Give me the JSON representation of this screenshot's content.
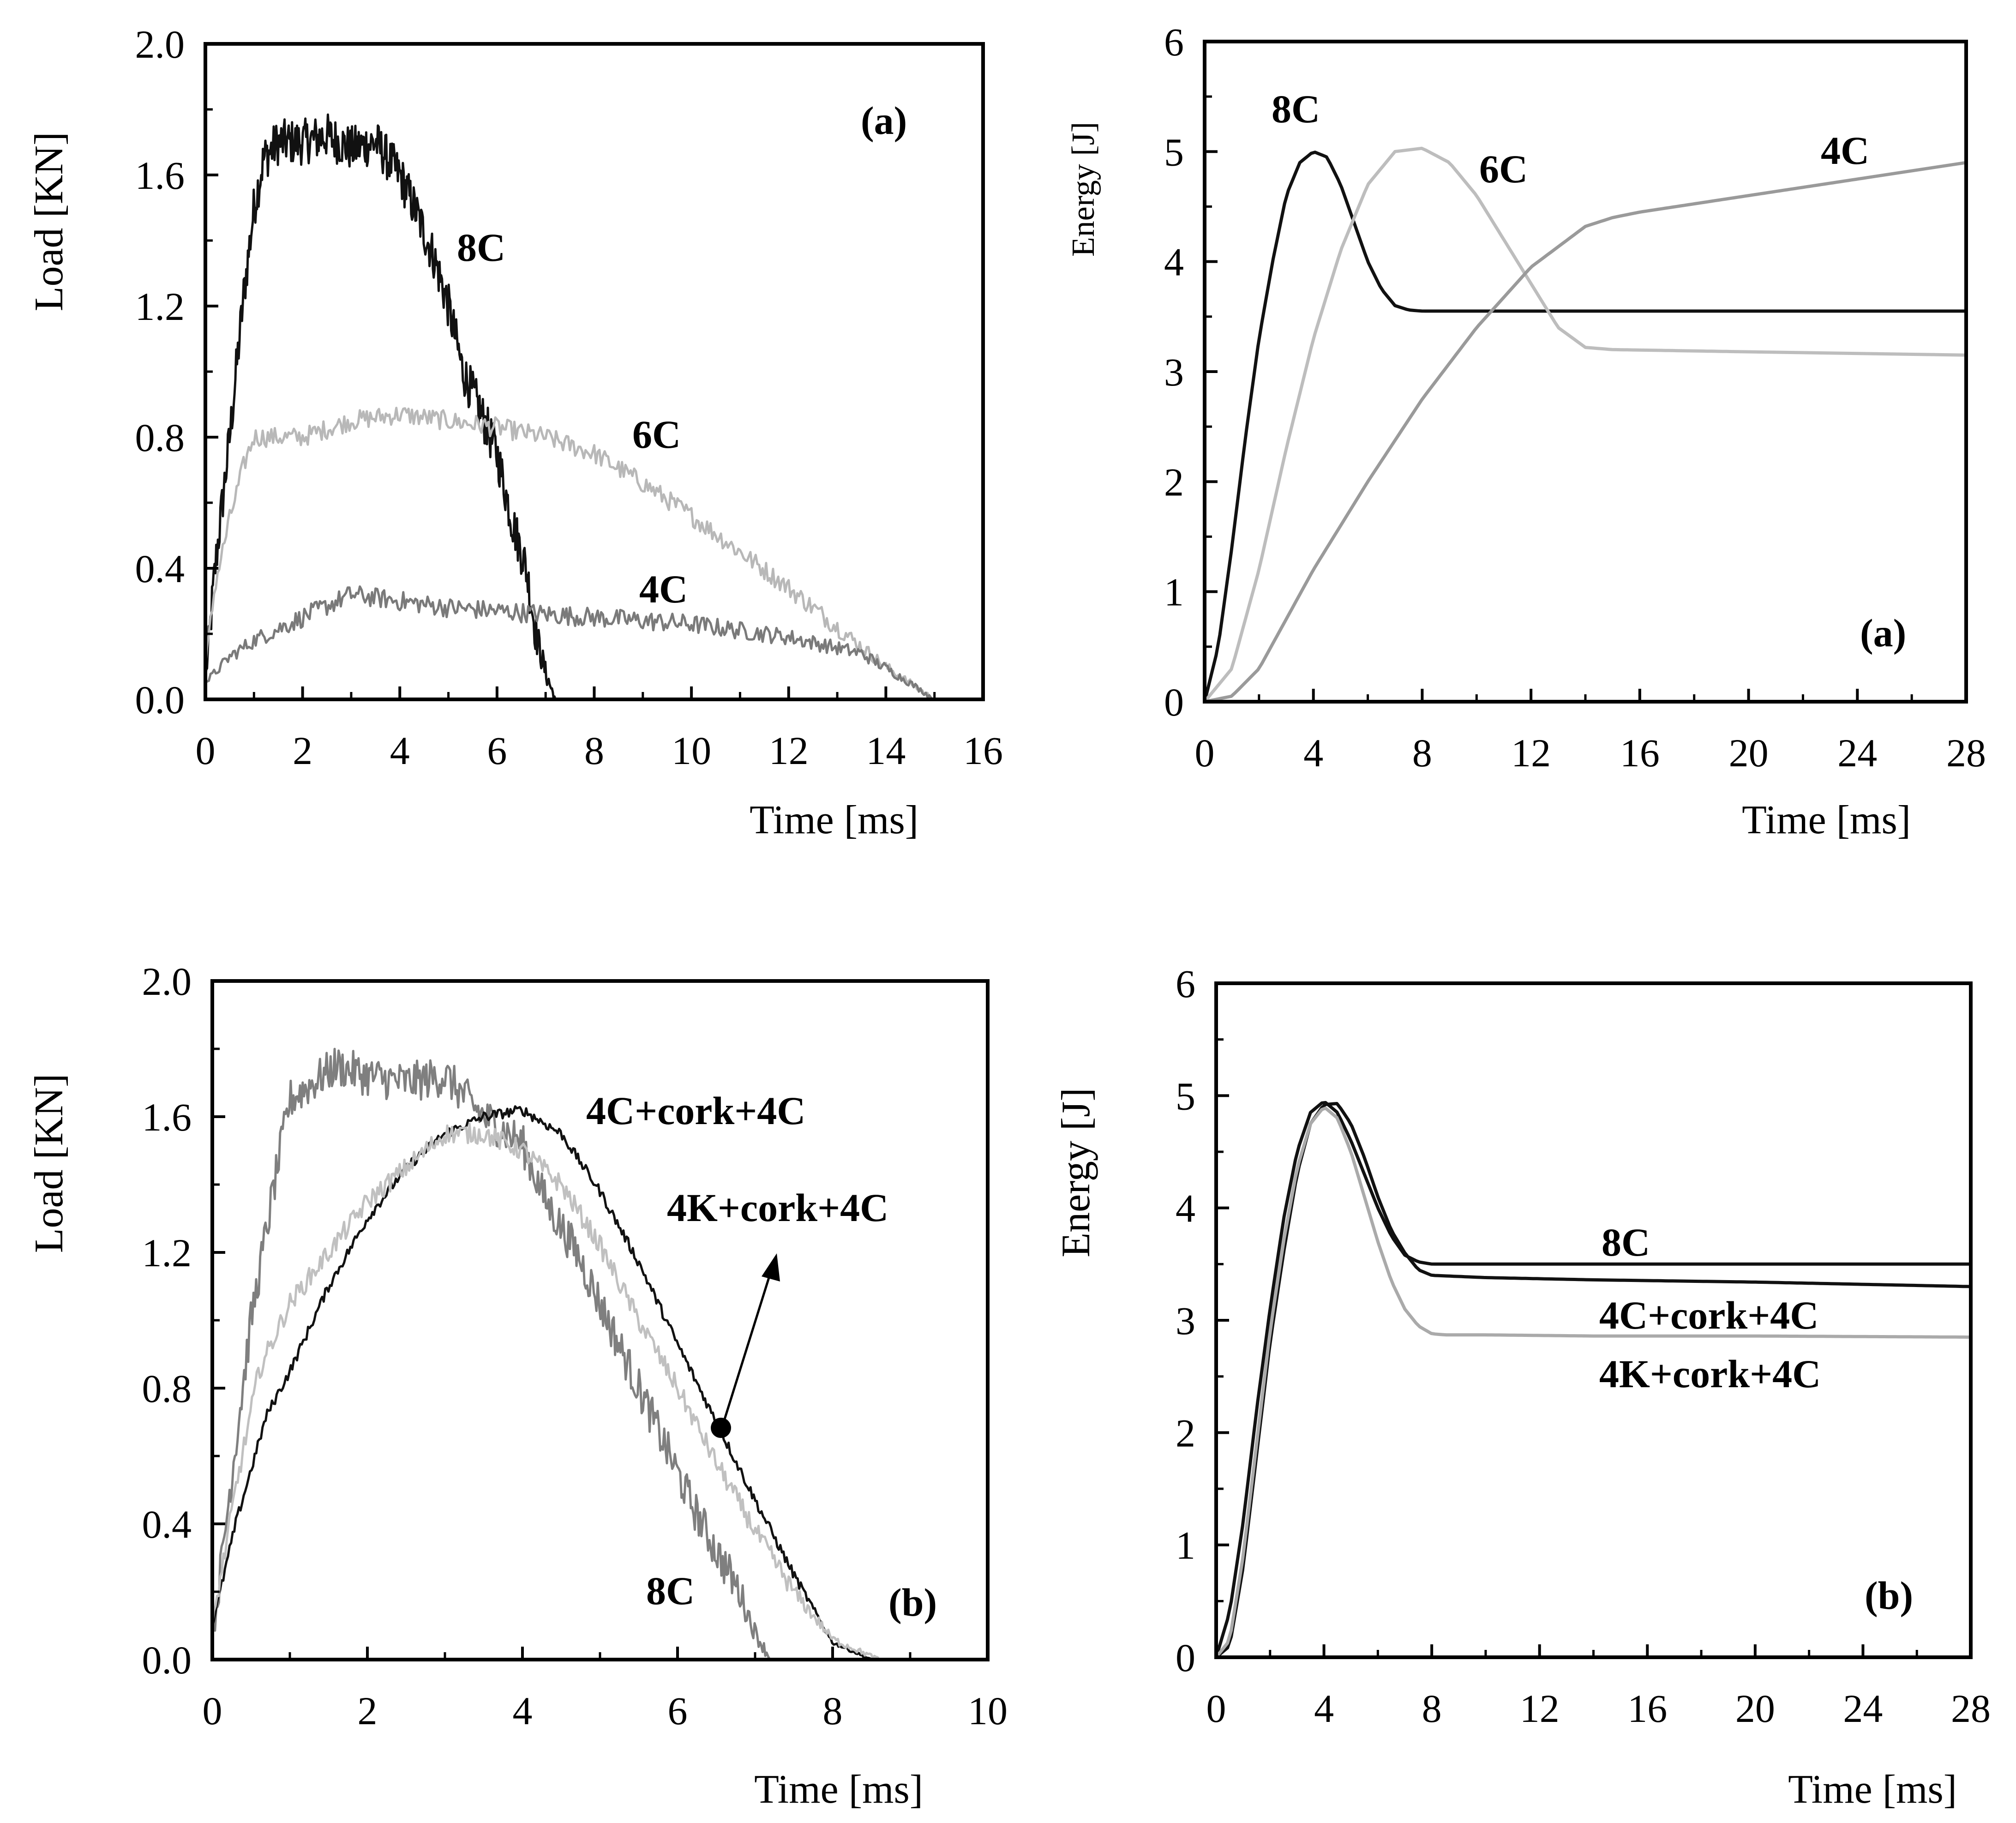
{
  "chart_data": [
    {
      "type": "line",
      "title": "",
      "panel_label": "(a)",
      "xlabel": "Time [ms]",
      "ylabel": "Load [KN]",
      "xlim": [
        0,
        16
      ],
      "ylim": [
        0,
        2.0
      ],
      "xticks": [
        "0",
        "2",
        "4",
        "6",
        "8",
        "10",
        "12",
        "14",
        "16"
      ],
      "yticks": [
        "0.0",
        "0.4",
        "0.8",
        "1.2",
        "1.6",
        "2.0"
      ],
      "grid": false,
      "series": [
        {
          "name": "8C",
          "color": "#111111",
          "noise": 0.07,
          "x": [
            0,
            0.2,
            0.5,
            0.8,
            1.0,
            1.2,
            1.5,
            2.0,
            2.5,
            3.0,
            3.5,
            4.0,
            4.3,
            4.7,
            5.0,
            5.3,
            5.6,
            6.0,
            6.3,
            6.6,
            6.8,
            7.0,
            7.2
          ],
          "y": [
            0.05,
            0.4,
            0.8,
            1.25,
            1.5,
            1.65,
            1.7,
            1.7,
            1.72,
            1.68,
            1.7,
            1.6,
            1.5,
            1.35,
            1.2,
            1.0,
            0.9,
            0.75,
            0.55,
            0.4,
            0.2,
            0.08,
            0.0
          ]
        },
        {
          "name": "6C",
          "color": "#b8b8b8",
          "noise": 0.03,
          "x": [
            0,
            0.2,
            0.5,
            0.8,
            1.0,
            2.0,
            3.0,
            4.0,
            5.0,
            6.0,
            7.0,
            8.0,
            9.0,
            10.0,
            11.0,
            12.0,
            13.0,
            14.0,
            14.5,
            15.0
          ],
          "y": [
            0.1,
            0.35,
            0.55,
            0.72,
            0.8,
            0.8,
            0.85,
            0.87,
            0.85,
            0.83,
            0.8,
            0.75,
            0.66,
            0.56,
            0.45,
            0.34,
            0.22,
            0.1,
            0.05,
            0.0
          ]
        },
        {
          "name": "4C",
          "color": "#7a7a7a",
          "noise": 0.03,
          "x": [
            0,
            0.5,
            1.0,
            2.0,
            3.0,
            4.0,
            5.0,
            6.0,
            8.0,
            10.0,
            12.0,
            13.5,
            14.5,
            15.0
          ],
          "y": [
            0.05,
            0.13,
            0.18,
            0.25,
            0.32,
            0.3,
            0.28,
            0.27,
            0.25,
            0.23,
            0.19,
            0.14,
            0.05,
            0.0
          ]
        }
      ],
      "annotations": [
        "8C",
        "6C",
        "4C"
      ]
    },
    {
      "type": "line",
      "title": "",
      "panel_label": "(a)",
      "xlabel": "Time [ms]",
      "ylabel": "Energy [J]",
      "xlim": [
        0,
        28
      ],
      "ylim": [
        0,
        6
      ],
      "xticks": [
        "0",
        "4",
        "8",
        "12",
        "16",
        "20",
        "24",
        "28"
      ],
      "yticks": [
        "0",
        "1",
        "2",
        "3",
        "4",
        "5",
        "6"
      ],
      "grid": false,
      "series": [
        {
          "name": "8C",
          "color": "#111111",
          "x": [
            0,
            0.5,
            1,
            1.5,
            2,
            2.5,
            3,
            3.5,
            4,
            4.5,
            5,
            5.5,
            6,
            6.5,
            7,
            7.5,
            8,
            10,
            14,
            20,
            28
          ],
          "y": [
            0,
            0.5,
            1.4,
            2.4,
            3.3,
            4.0,
            4.6,
            4.9,
            5.0,
            4.95,
            4.7,
            4.35,
            4.0,
            3.75,
            3.6,
            3.56,
            3.55,
            3.55,
            3.55,
            3.55,
            3.55
          ]
        },
        {
          "name": "6C",
          "color": "#bdbdbd",
          "x": [
            0,
            1,
            2,
            3,
            4,
            5,
            6,
            7,
            8,
            9,
            10,
            11,
            12,
            13,
            14,
            15,
            20,
            28
          ],
          "y": [
            0,
            0.3,
            1.2,
            2.3,
            3.3,
            4.1,
            4.7,
            5.0,
            5.03,
            4.9,
            4.6,
            4.2,
            3.8,
            3.4,
            3.22,
            3.2,
            3.18,
            3.15
          ]
        },
        {
          "name": "4C",
          "color": "#9a9a9a",
          "x": [
            0,
            1,
            2,
            3,
            4,
            6,
            8,
            10,
            12,
            14,
            15,
            16,
            20,
            24,
            28
          ],
          "y": [
            0,
            0.05,
            0.3,
            0.75,
            1.2,
            2.0,
            2.75,
            3.4,
            3.95,
            4.32,
            4.4,
            4.45,
            4.6,
            4.75,
            4.9
          ]
        }
      ],
      "annotations": [
        "8C",
        "6C",
        "4C"
      ]
    },
    {
      "type": "line",
      "title": "",
      "panel_label": "(b)",
      "xlabel": "Time [ms]",
      "ylabel": "Load [KN]",
      "xlim": [
        0,
        10
      ],
      "ylim": [
        0,
        2.0
      ],
      "xticks": [
        "0",
        "2",
        "4",
        "6",
        "8",
        "10"
      ],
      "yticks": [
        "0.0",
        "0.4",
        "0.8",
        "1.2",
        "1.6",
        "2.0"
      ],
      "grid": false,
      "series": [
        {
          "name": "8C",
          "color": "#7f7f7f",
          "noise": 0.06,
          "x": [
            0,
            0.2,
            0.5,
            0.8,
            1.0,
            1.3,
            1.6,
            2.0,
            2.5,
            3.0,
            3.5,
            4.0,
            4.3,
            4.7,
            5.0,
            5.3,
            5.6,
            5.9,
            6.2,
            6.5,
            6.8,
            7.0,
            7.2
          ],
          "y": [
            0.05,
            0.45,
            1.0,
            1.4,
            1.65,
            1.7,
            1.75,
            1.72,
            1.7,
            1.72,
            1.6,
            1.52,
            1.35,
            1.2,
            1.05,
            0.9,
            0.75,
            0.6,
            0.45,
            0.32,
            0.2,
            0.08,
            0.0
          ]
        },
        {
          "name": "4C+cork+4C",
          "color": "#111111",
          "noise": 0.015,
          "x": [
            0,
            0.3,
            0.7,
            1.0,
            1.5,
            2.0,
            2.5,
            3.0,
            3.5,
            4.0,
            4.5,
            5.0,
            5.5,
            6.0,
            6.5,
            7.0,
            7.5,
            8.0,
            8.5
          ],
          "y": [
            0.1,
            0.4,
            0.72,
            0.85,
            1.1,
            1.3,
            1.45,
            1.55,
            1.6,
            1.62,
            1.55,
            1.38,
            1.17,
            0.93,
            0.7,
            0.47,
            0.25,
            0.05,
            0.0
          ]
        },
        {
          "name": "4K+cork+4C",
          "color": "#c0c0c0",
          "noise": 0.03,
          "x": [
            0,
            0.3,
            0.6,
            1.0,
            1.5,
            2.0,
            2.5,
            3.0,
            3.5,
            4.0,
            4.5,
            5.0,
            5.5,
            6.0,
            6.5,
            7.0,
            7.5,
            8.0,
            8.6
          ],
          "y": [
            0.1,
            0.5,
            0.85,
            1.05,
            1.2,
            1.35,
            1.45,
            1.55,
            1.55,
            1.5,
            1.4,
            1.22,
            1.0,
            0.8,
            0.58,
            0.38,
            0.2,
            0.06,
            0.0
          ]
        }
      ],
      "annotations": [
        "4C+cork+4C",
        "4K+cork+4C",
        "8C"
      ]
    },
    {
      "type": "line",
      "title": "",
      "panel_label": "(b)",
      "xlabel": "Time [ms]",
      "ylabel": "Energy [J]",
      "xlim": [
        0,
        28
      ],
      "ylim": [
        0,
        6
      ],
      "xticks": [
        "0",
        "4",
        "8",
        "12",
        "16",
        "20",
        "24",
        "28"
      ],
      "yticks": [
        "0",
        "1",
        "2",
        "3",
        "4",
        "5",
        "6"
      ],
      "grid": false,
      "series": [
        {
          "name": "8C",
          "color": "#111111",
          "x": [
            0,
            0.5,
            1,
            1.5,
            2,
            2.5,
            3,
            3.5,
            4,
            4.5,
            5,
            5.5,
            6,
            6.5,
            7,
            7.5,
            8,
            10,
            14,
            20,
            28
          ],
          "y": [
            0,
            0.4,
            1.2,
            2.2,
            3.1,
            3.9,
            4.5,
            4.85,
            4.95,
            4.85,
            4.6,
            4.3,
            4.0,
            3.75,
            3.58,
            3.52,
            3.5,
            3.5,
            3.5,
            3.5,
            3.5
          ]
        },
        {
          "name": "4C+cork+4C",
          "color": "#111111",
          "x": [
            0,
            0.5,
            1,
            1.5,
            2,
            2.5,
            3,
            3.5,
            4,
            4.5,
            5,
            5.5,
            6,
            6.5,
            7,
            7.5,
            8,
            10,
            14,
            20,
            28
          ],
          "y": [
            0,
            0.1,
            0.8,
            1.8,
            2.8,
            3.6,
            4.3,
            4.75,
            4.92,
            4.93,
            4.75,
            4.45,
            4.1,
            3.8,
            3.6,
            3.45,
            3.4,
            3.38,
            3.36,
            3.34,
            3.3
          ]
        },
        {
          "name": "4K+cork+4C",
          "color": "#aaaaaa",
          "x": [
            0,
            0.5,
            1,
            1.5,
            2,
            2.5,
            3,
            3.5,
            4,
            4.5,
            5,
            5.5,
            6,
            6.5,
            7,
            7.5,
            8,
            8.5,
            10,
            14,
            20,
            28
          ],
          "y": [
            0,
            0.15,
            0.9,
            1.9,
            2.9,
            3.7,
            4.35,
            4.75,
            4.9,
            4.8,
            4.5,
            4.1,
            3.7,
            3.35,
            3.1,
            2.95,
            2.88,
            2.87,
            2.87,
            2.86,
            2.86,
            2.85
          ]
        }
      ],
      "annotations": [
        "8C",
        "4C+cork+4C",
        "4K+cork+4C"
      ]
    }
  ]
}
